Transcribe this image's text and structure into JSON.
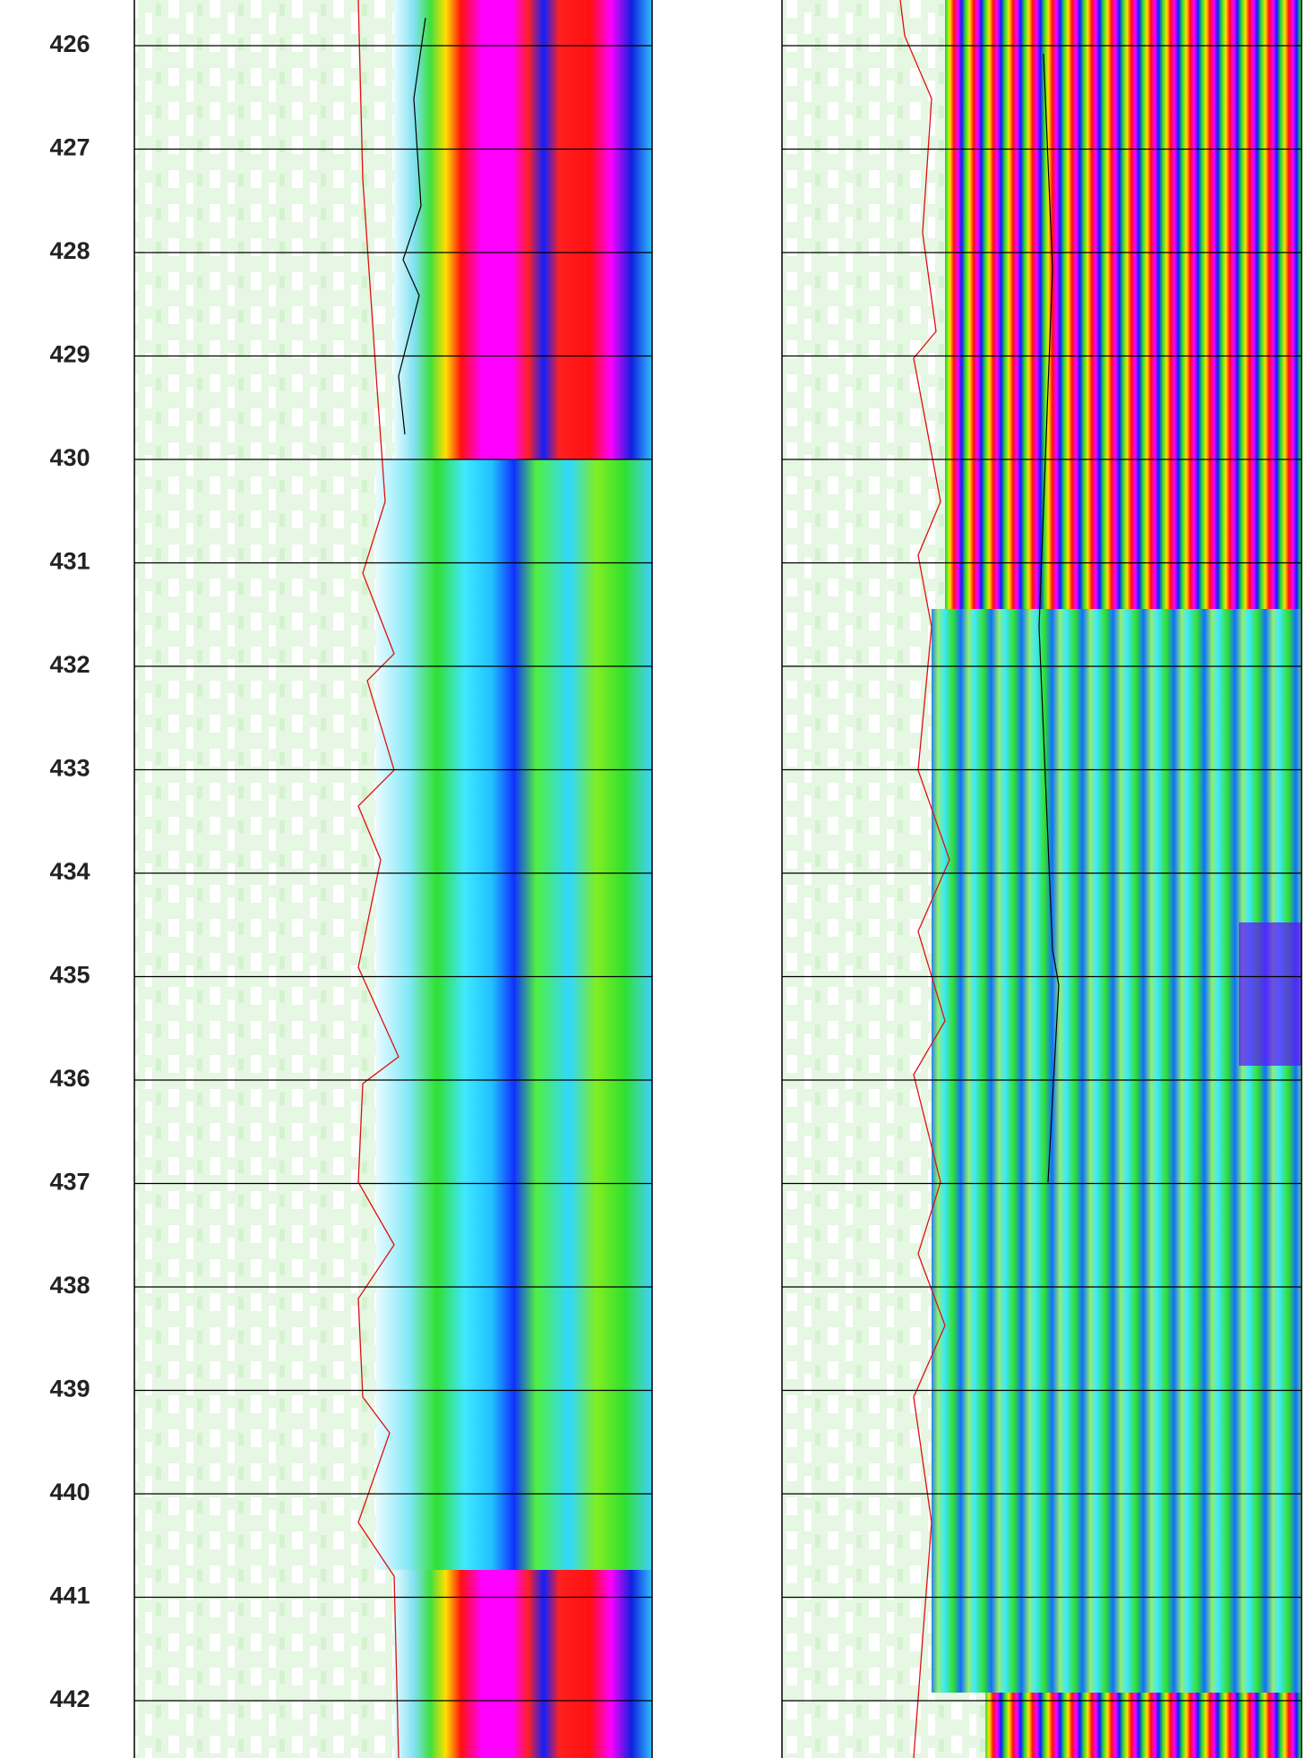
{
  "depth_track": {
    "labels": [
      426,
      427,
      428,
      429,
      430,
      431,
      432,
      433,
      434,
      435,
      436,
      437,
      438,
      439,
      440,
      441,
      442
    ]
  }
}
